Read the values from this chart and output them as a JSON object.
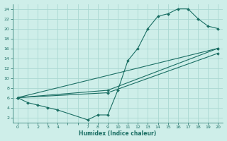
{
  "xlabel": "Humidex (Indice chaleur)",
  "bg_color": "#ceeee9",
  "grid_color": "#aad8d2",
  "line_color": "#1a6e63",
  "xlim": [
    -0.5,
    20.5
  ],
  "ylim": [
    1,
    25
  ],
  "xtick_labels": [
    "0",
    "1",
    "2",
    "3",
    "4",
    "7",
    "8",
    "9",
    "10",
    "11",
    "12",
    "13",
    "14",
    "15",
    "16",
    "17",
    "18",
    "19",
    "20"
  ],
  "ytick_vals": [
    2,
    4,
    6,
    8,
    10,
    12,
    14,
    16,
    18,
    20,
    22,
    24
  ],
  "line1_x": [
    0,
    1,
    2,
    3,
    4,
    7,
    8,
    9,
    10,
    11,
    12,
    13,
    14,
    15,
    16,
    17,
    18,
    19,
    20
  ],
  "line1_y": [
    6,
    5,
    4.5,
    4,
    3.5,
    1.5,
    2.5,
    2.5,
    7.5,
    13.5,
    16,
    20,
    22.5,
    23,
    24,
    24,
    22,
    20.5,
    20
  ],
  "line2_x": [
    0,
    20
  ],
  "line2_y": [
    6,
    16
  ],
  "line3_x": [
    0,
    9,
    20
  ],
  "line3_y": [
    6,
    7.5,
    16
  ],
  "line4_x": [
    0,
    9,
    20
  ],
  "line4_y": [
    6,
    7,
    15
  ]
}
